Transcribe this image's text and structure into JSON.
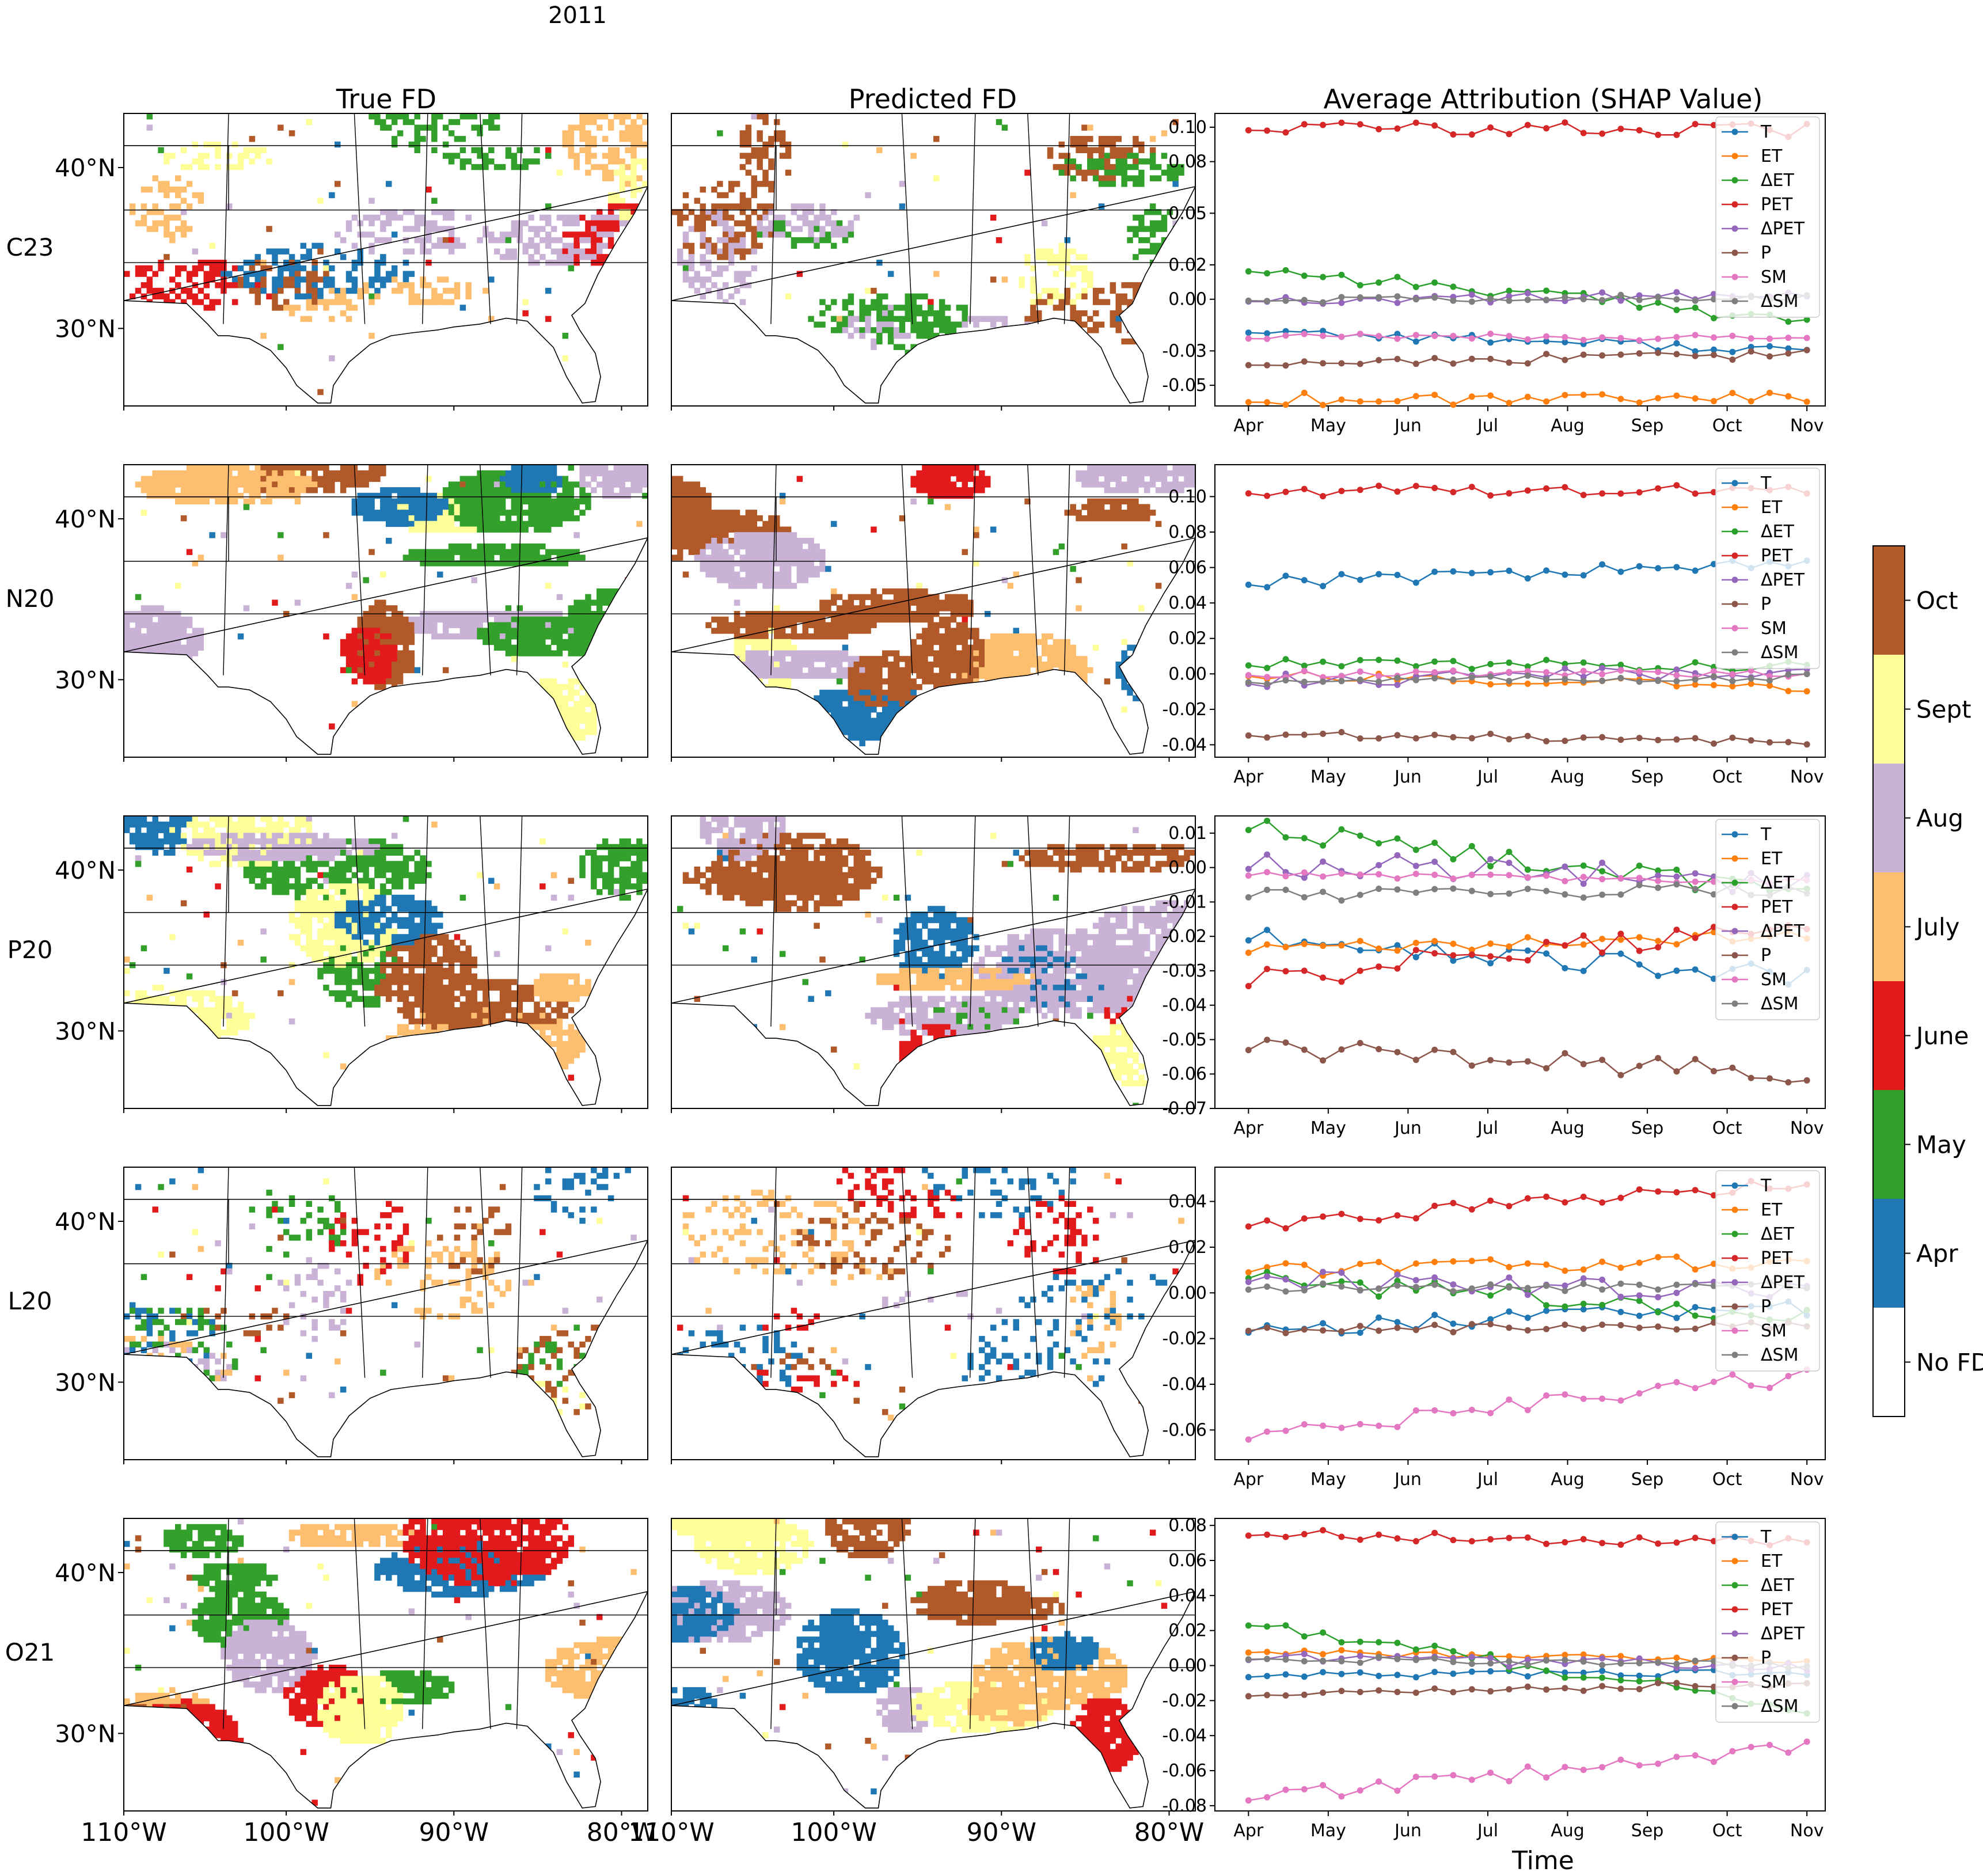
{
  "figure": {
    "suptitle": "2011",
    "col_titles": [
      "True FD",
      "Predicted FD",
      "Average Attribution (SHAP Value)"
    ],
    "row_labels": [
      "C23",
      "N20",
      "P20",
      "L20",
      "O21"
    ],
    "x_axis_title": "Time"
  },
  "colorbar": {
    "labels": [
      "No FD",
      "Apr",
      "May",
      "June",
      "July",
      "Aug",
      "Sept",
      "Oct"
    ],
    "colors": [
      "#ffffff",
      "#1f78b4",
      "#33a02c",
      "#e31a1c",
      "#fdbf6f",
      "#cab2d6",
      "#ffff99",
      "#b15928"
    ]
  },
  "map_axes": {
    "lat_ticks": [
      "40°N",
      "30°N"
    ],
    "lon_ticks": [
      "110°W",
      "100°W",
      "90°W",
      "80°W"
    ],
    "lon_range": [
      -110,
      -78
    ],
    "lat_range": [
      24.5,
      42.6
    ]
  },
  "series_colors": [
    "#1f77b4",
    "#ff7f0e",
    "#2ca02c",
    "#d62728",
    "#9467bd",
    "#8c564b",
    "#e377c2",
    "#7f7f7f"
  ],
  "chart_data": [
    {
      "type": "line",
      "row": "C23",
      "title": "Average Attribution (SHAP Value)",
      "x_tick_labels": [
        "Apr",
        "May",
        "Jun",
        "Jul",
        "Aug",
        "Sep",
        "Oct",
        "Nov"
      ],
      "y_ticks": [
        "0.10",
        "0.08",
        "0.05",
        "0.02",
        "0.00",
        "-0.03",
        "-0.05"
      ],
      "ylim": [
        -0.062,
        0.108
      ],
      "legend": [
        "T",
        "ET",
        "ΔET",
        "PET",
        "ΔPET",
        "P",
        "SM",
        "ΔSM"
      ],
      "series": [
        {
          "name": "T",
          "start": -0.018,
          "end": -0.03,
          "noise": 0.003
        },
        {
          "name": "ET",
          "start": -0.058,
          "end": -0.056,
          "noise": 0.004
        },
        {
          "name": "ΔET",
          "start": 0.018,
          "end": -0.012,
          "noise": 0.004
        },
        {
          "name": "PET",
          "start": 0.1,
          "end": 0.098,
          "noise": 0.004
        },
        {
          "name": "ΔPET",
          "start": 0.0,
          "end": 0.002,
          "noise": 0.003
        },
        {
          "name": "P",
          "start": -0.037,
          "end": -0.032,
          "noise": 0.003
        },
        {
          "name": "SM",
          "start": -0.022,
          "end": -0.022,
          "noise": 0.002
        },
        {
          "name": "ΔSM",
          "start": 0.0,
          "end": 0.001,
          "noise": 0.002
        }
      ]
    },
    {
      "type": "line",
      "row": "N20",
      "x_tick_labels": [
        "Apr",
        "May",
        "Jun",
        "Jul",
        "Aug",
        "Sep",
        "Oct",
        "Nov"
      ],
      "y_ticks": [
        "0.10",
        "0.08",
        "0.06",
        "0.04",
        "0.02",
        "0.00",
        "-0.02",
        "-0.04"
      ],
      "ylim": [
        -0.047,
        0.118
      ],
      "legend": [
        "T",
        "ET",
        "ΔET",
        "PET",
        "ΔPET",
        "P",
        "SM",
        "ΔSM"
      ],
      "series": [
        {
          "name": "T",
          "start": 0.052,
          "end": 0.062,
          "noise": 0.004
        },
        {
          "name": "ET",
          "start": 0.0,
          "end": -0.008,
          "noise": 0.003
        },
        {
          "name": "ΔET",
          "start": 0.006,
          "end": 0.004,
          "noise": 0.003
        },
        {
          "name": "PET",
          "start": 0.103,
          "end": 0.104,
          "noise": 0.003
        },
        {
          "name": "ΔPET",
          "start": -0.004,
          "end": 0.002,
          "noise": 0.004
        },
        {
          "name": "P",
          "start": -0.034,
          "end": -0.038,
          "noise": 0.002
        },
        {
          "name": "SM",
          "start": 0.0,
          "end": 0.0,
          "noise": 0.002
        },
        {
          "name": "ΔSM",
          "start": -0.004,
          "end": -0.002,
          "noise": 0.002
        }
      ]
    },
    {
      "type": "line",
      "row": "P20",
      "x_tick_labels": [
        "Apr",
        "May",
        "Jun",
        "Jul",
        "Aug",
        "Sep",
        "Oct",
        "Nov"
      ],
      "y_ticks": [
        "0.01",
        "0.00",
        "-0.01",
        "-0.02",
        "-0.03",
        "-0.04",
        "-0.05",
        "-0.06",
        "-0.07"
      ],
      "ylim": [
        -0.07,
        0.015
      ],
      "legend": [
        "T",
        "ET",
        "ΔET",
        "PET",
        "ΔPET",
        "P",
        "SM",
        "ΔSM"
      ],
      "series": [
        {
          "name": "T",
          "start": -0.02,
          "end": -0.032,
          "noise": 0.003
        },
        {
          "name": "ET",
          "start": -0.024,
          "end": -0.02,
          "noise": 0.002
        },
        {
          "name": "ΔET",
          "start": 0.012,
          "end": -0.008,
          "noise": 0.003
        },
        {
          "name": "PET",
          "start": -0.033,
          "end": -0.016,
          "noise": 0.004
        },
        {
          "name": "ΔPET",
          "start": 0.001,
          "end": -0.004,
          "noise": 0.004
        },
        {
          "name": "P",
          "start": -0.052,
          "end": -0.06,
          "noise": 0.003
        },
        {
          "name": "SM",
          "start": -0.002,
          "end": -0.004,
          "noise": 0.001
        },
        {
          "name": "ΔSM",
          "start": -0.008,
          "end": -0.006,
          "noise": 0.002
        }
      ]
    },
    {
      "type": "line",
      "row": "L20",
      "x_tick_labels": [
        "Apr",
        "May",
        "Jun",
        "Jul",
        "Aug",
        "Sep",
        "Oct",
        "Nov"
      ],
      "y_ticks": [
        "0.04",
        "0.02",
        "0.00",
        "-0.02",
        "-0.04",
        "-0.06"
      ],
      "ylim": [
        -0.073,
        0.055
      ],
      "legend": [
        "T",
        "ET",
        "ΔET",
        "PET",
        "ΔPET",
        "P",
        "SM",
        "ΔSM"
      ],
      "series": [
        {
          "name": "T",
          "start": -0.016,
          "end": -0.006,
          "noise": 0.004
        },
        {
          "name": "ET",
          "start": 0.01,
          "end": 0.014,
          "noise": 0.003
        },
        {
          "name": "ΔET",
          "start": 0.008,
          "end": -0.012,
          "noise": 0.005
        },
        {
          "name": "PET",
          "start": 0.03,
          "end": 0.048,
          "noise": 0.003
        },
        {
          "name": "ΔPET",
          "start": 0.006,
          "end": 0.0,
          "noise": 0.004
        },
        {
          "name": "P",
          "start": -0.016,
          "end": -0.014,
          "noise": 0.002
        },
        {
          "name": "SM",
          "start": -0.063,
          "end": -0.036,
          "noise": 0.004
        },
        {
          "name": "ΔSM",
          "start": 0.002,
          "end": 0.003,
          "noise": 0.002
        }
      ]
    },
    {
      "type": "line",
      "row": "O21",
      "x_tick_labels": [
        "Apr",
        "May",
        "Jun",
        "Jul",
        "Aug",
        "Sep",
        "Oct",
        "Nov"
      ],
      "y_ticks": [
        "0.08",
        "0.06",
        "0.04",
        "0.02",
        "0.00",
        "-0.02",
        "-0.04",
        "-0.06",
        "-0.08"
      ],
      "ylim": [
        -0.083,
        0.084
      ],
      "legend": [
        "T",
        "ET",
        "ΔET",
        "PET",
        "ΔPET",
        "P",
        "SM",
        "ΔSM"
      ],
      "series": [
        {
          "name": "T",
          "start": -0.006,
          "end": -0.004,
          "noise": 0.002
        },
        {
          "name": "ET",
          "start": 0.008,
          "end": 0.002,
          "noise": 0.002
        },
        {
          "name": "ΔET",
          "start": 0.024,
          "end": -0.024,
          "noise": 0.004
        },
        {
          "name": "PET",
          "start": 0.075,
          "end": 0.07,
          "noise": 0.003
        },
        {
          "name": "ΔPET",
          "start": 0.004,
          "end": 0.0,
          "noise": 0.003
        },
        {
          "name": "P",
          "start": -0.017,
          "end": -0.01,
          "noise": 0.002
        },
        {
          "name": "SM",
          "start": -0.076,
          "end": -0.047,
          "noise": 0.004
        },
        {
          "name": "ΔSM",
          "start": 0.004,
          "end": 0.0,
          "noise": 0.002
        }
      ]
    }
  ]
}
